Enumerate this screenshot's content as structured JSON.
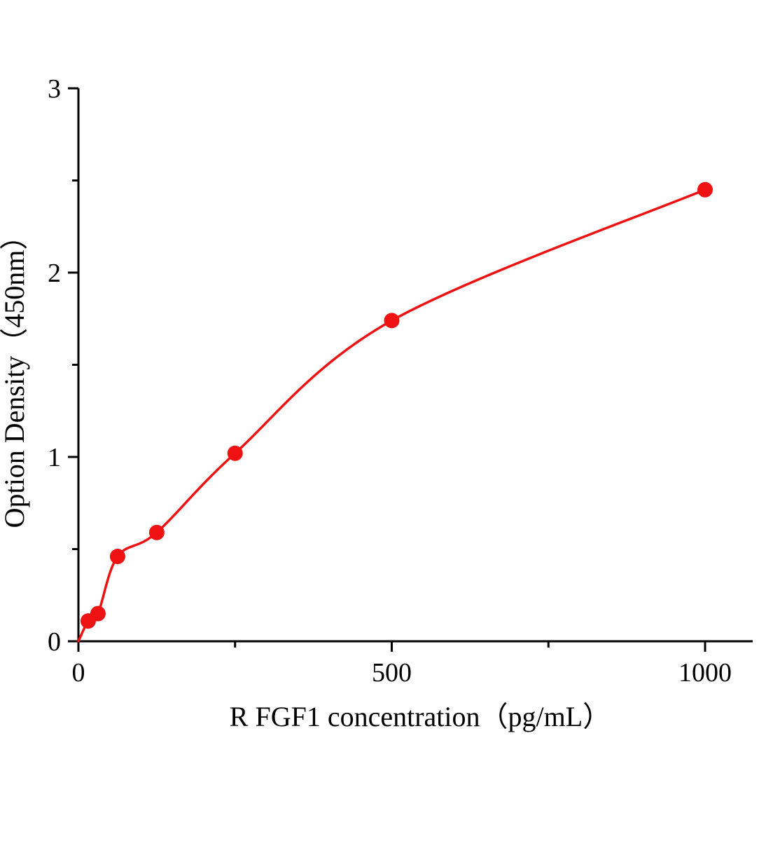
{
  "chart_data": {
    "type": "scatter",
    "title": "",
    "xlabel": "R FGF1  concentration（pg/mL）",
    "ylabel": "Option Density（450nm）",
    "x": [
      15.6,
      31.2,
      62.5,
      125,
      250,
      500,
      1000
    ],
    "y": [
      0.11,
      0.15,
      0.46,
      0.59,
      1.02,
      1.74,
      2.45
    ],
    "curve_start_x": 0,
    "curve_start_y": 0,
    "xlim": [
      0,
      1000
    ],
    "ylim": [
      0,
      3
    ],
    "x_major_ticks": [
      0,
      500,
      1000
    ],
    "x_minor_ticks": [
      250,
      750
    ],
    "y_major_ticks": [
      0,
      1,
      2,
      3
    ],
    "y_minor_ticks": [
      0.5,
      1.5,
      2.5
    ],
    "x_tick_labels": [
      "0",
      "500",
      "1000"
    ],
    "y_tick_labels": [
      "0",
      "1",
      "2",
      "3"
    ],
    "point_color": "#ee1212",
    "line_color": "#ee1212",
    "axis_color": "#000000",
    "grid": false,
    "legend": null
  }
}
